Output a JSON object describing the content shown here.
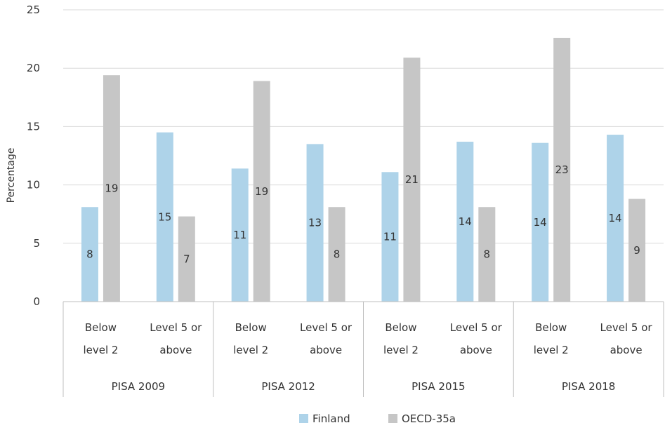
{
  "chart_data": {
    "type": "bar",
    "title": "",
    "xlabel": "",
    "ylabel": "Percentage",
    "ylim": [
      0,
      25
    ],
    "yticks": [
      0,
      5,
      10,
      15,
      20,
      25
    ],
    "grid": true,
    "legend_position": "bottom-center",
    "groups": [
      {
        "label": "PISA 2009",
        "categories": [
          [
            "Below",
            "level 2"
          ],
          [
            "Level 5 or",
            "above"
          ]
        ]
      },
      {
        "label": "PISA 2012",
        "categories": [
          [
            "Below",
            "level 2"
          ],
          [
            "Level 5 or",
            "above"
          ]
        ]
      },
      {
        "label": "PISA 2015",
        "categories": [
          [
            "Below",
            "level 2"
          ],
          [
            "Level 5 or",
            "above"
          ]
        ]
      },
      {
        "label": "PISA 2018",
        "categories": [
          [
            "Below",
            "level 2"
          ],
          [
            "Level 5 or",
            "above"
          ]
        ]
      }
    ],
    "series": [
      {
        "name": "Finland",
        "color": "#aed3e9",
        "values": [
          8.1,
          14.5,
          11.4,
          13.5,
          11.1,
          13.7,
          13.6,
          14.3
        ],
        "labels": [
          "8",
          "15",
          "11",
          "13",
          "11",
          "14",
          "14",
          "14"
        ]
      },
      {
        "name": "OECD-35a",
        "color": "#c6c6c6",
        "values": [
          19.4,
          7.3,
          18.9,
          8.1,
          20.9,
          8.1,
          22.6,
          8.8
        ],
        "labels": [
          "19",
          "7",
          "19",
          "8",
          "21",
          "8",
          "23",
          "9"
        ]
      }
    ]
  }
}
